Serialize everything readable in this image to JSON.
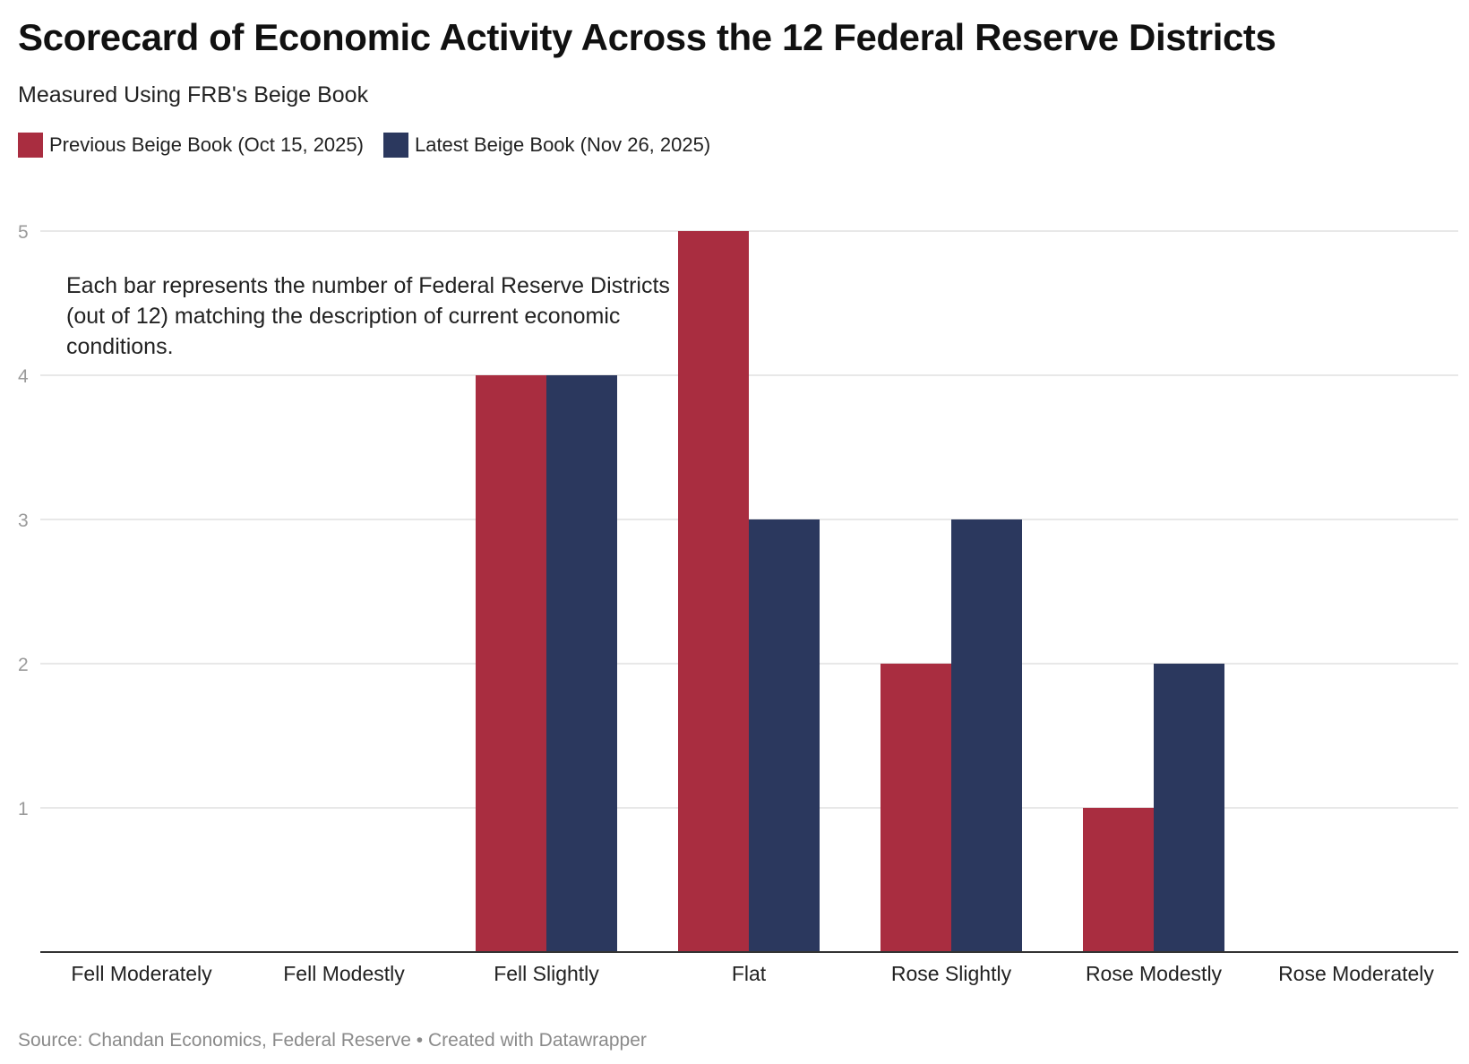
{
  "title": "Scorecard of Economic Activity Across the 12 Federal Reserve Districts",
  "subtitle": "Measured Using FRB's Beige Book",
  "annotation": "Each bar represents the number of Federal Reserve Districts (out of 12) matching the description of current economic conditions.",
  "footer": {
    "source": "Source: Chandan Economics, Federal Reserve",
    "separator": "•",
    "credit": "Created with Datawrapper"
  },
  "colors": {
    "previous": "#a92d40",
    "latest": "#2b385e",
    "grid": "#e1e1e1",
    "axis": "#333333",
    "tick": "#9a9a9a",
    "category": "#222222"
  },
  "chart_data": {
    "type": "bar",
    "title": "Scorecard of Economic Activity Across the 12 Federal Reserve Districts",
    "subtitle": "Measured Using FRB's Beige Book",
    "xlabel": "",
    "ylabel": "",
    "ylim": [
      0,
      5
    ],
    "yticks": [
      1,
      2,
      3,
      4,
      5
    ],
    "grid": true,
    "legend_position": "top-left",
    "categories": [
      "Fell Moderately",
      "Fell Modestly",
      "Fell Slightly",
      "Flat",
      "Rose Slightly",
      "Rose Modestly",
      "Rose Moderately"
    ],
    "series": [
      {
        "name": "Previous Beige Book (Oct 15, 2025)",
        "color": "#a92d40",
        "values": [
          0,
          0,
          4,
          5,
          2,
          1,
          0
        ]
      },
      {
        "name": "Latest Beige Book (Nov 26, 2025)",
        "color": "#2b385e",
        "values": [
          0,
          0,
          4,
          3,
          3,
          2,
          0
        ]
      }
    ]
  }
}
